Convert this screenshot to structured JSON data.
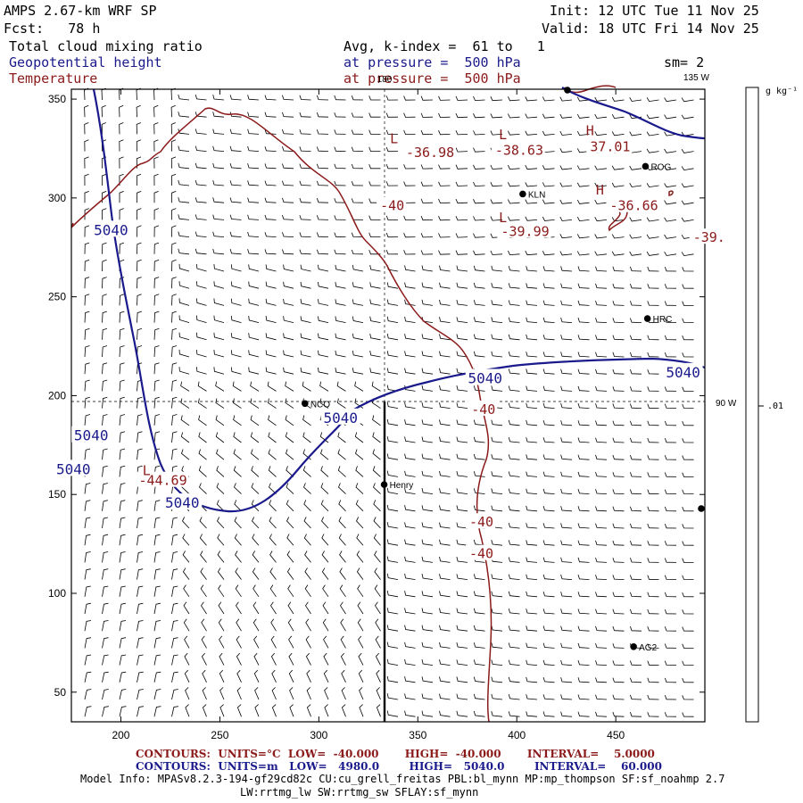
{
  "header": {
    "model": "AMPS 2.67-km WRF SP",
    "forecast": "Fcst:   78 h",
    "init": "Init: 12 UTC Tue 11 Nov 25",
    "valid": "Valid: 18 UTC Fri 14 Nov 25",
    "field1": "Total cloud mixing ratio",
    "field2": "Geopotential height",
    "field3": "Temperature",
    "avg": "Avg, k-index =  61 to   1",
    "pressure1": "at pressure =  500 hPa",
    "pressure2": "at pressure =  500 hPa",
    "sm": "sm= 2"
  },
  "map": {
    "x_ticks": [
      "200",
      "250",
      "300",
      "350",
      "400",
      "450"
    ],
    "y_ticks": [
      "350",
      "300",
      "250",
      "200",
      "150",
      "100",
      "50"
    ],
    "lon_labels": {
      "top": "180",
      "top_right": "135 W",
      "right": "90 W"
    },
    "colorbar": {
      "unit": "g kg⁻¹",
      "tick": ".01"
    },
    "stations": [
      {
        "name": "ROG",
        "x": 465,
        "y": 316
      },
      {
        "name": "KLN",
        "x": 403,
        "y": 302
      },
      {
        "name": "HRC",
        "x": 466,
        "y": 239
      },
      {
        "name": "NCO",
        "x": 293,
        "y": 196
      },
      {
        "name": "Henry",
        "x": 333,
        "y": 155
      },
      {
        "name": "AG2",
        "x": 459,
        "y": 73
      }
    ],
    "height_labels": [
      {
        "text": "5040",
        "x": 195,
        "y": 284
      },
      {
        "text": "5040",
        "x": 185,
        "y": 180
      },
      {
        "text": "5040",
        "x": 176,
        "y": 163
      },
      {
        "text": "5040",
        "x": 231,
        "y": 146
      },
      {
        "text": "5040",
        "x": 311,
        "y": 189
      },
      {
        "text": "5040",
        "x": 384,
        "y": 209
      },
      {
        "text": "5040",
        "x": 484,
        "y": 212
      }
    ],
    "temp_labels": [
      {
        "text": "-36.98",
        "x": 344,
        "y": 323
      },
      {
        "text": "-38.63",
        "x": 389,
        "y": 324
      },
      {
        "text": "37.01",
        "x": 437,
        "y": 326
      },
      {
        "text": "-36.66",
        "x": 447,
        "y": 296
      },
      {
        "text": "-39.99",
        "x": 392,
        "y": 283
      },
      {
        "text": "-39.",
        "x": 489,
        "y": 280
      },
      {
        "text": "-40",
        "x": 331,
        "y": 296
      },
      {
        "text": "-40",
        "x": 377,
        "y": 193
      },
      {
        "text": "-40",
        "x": 376,
        "y": 136
      },
      {
        "text": "-40",
        "x": 376,
        "y": 120
      },
      {
        "text": "-44.69",
        "x": 209,
        "y": 157
      }
    ],
    "pressure_centers": [
      {
        "letter": "L",
        "x": 338,
        "y": 330
      },
      {
        "letter": "L",
        "x": 393,
        "y": 332
      },
      {
        "letter": "H",
        "x": 437,
        "y": 334
      },
      {
        "letter": "H",
        "x": 442,
        "y": 304
      },
      {
        "letter": "L",
        "x": 393,
        "y": 290
      },
      {
        "letter": "L",
        "x": 213,
        "y": 162
      }
    ]
  },
  "footer": {
    "line1_contours": "CONTOURS:  UNITS=°C  LOW=  -40.000       HIGH=  -40.000       INTERVAL=    5.0000",
    "line2_contours": "CONTOURS:  UNITS=m   LOW=   4980.0        HIGH=   5040.0        INTERVAL=    60.000",
    "model_info": "Model Info: MPASv8.2.3-194-gf29cd82c CU:cu_grell_freitas PBL:bl_mynn MP:mp_thompson SF:sf_noahmp 2.7",
    "model_info2": "LW:rrtmg_lw SW:rrtmg_sw SFLAY:sf_mynn"
  },
  "colors": {
    "height": "#1a1a8c",
    "temperature": "#8b1a1a",
    "barb": "#000000"
  }
}
